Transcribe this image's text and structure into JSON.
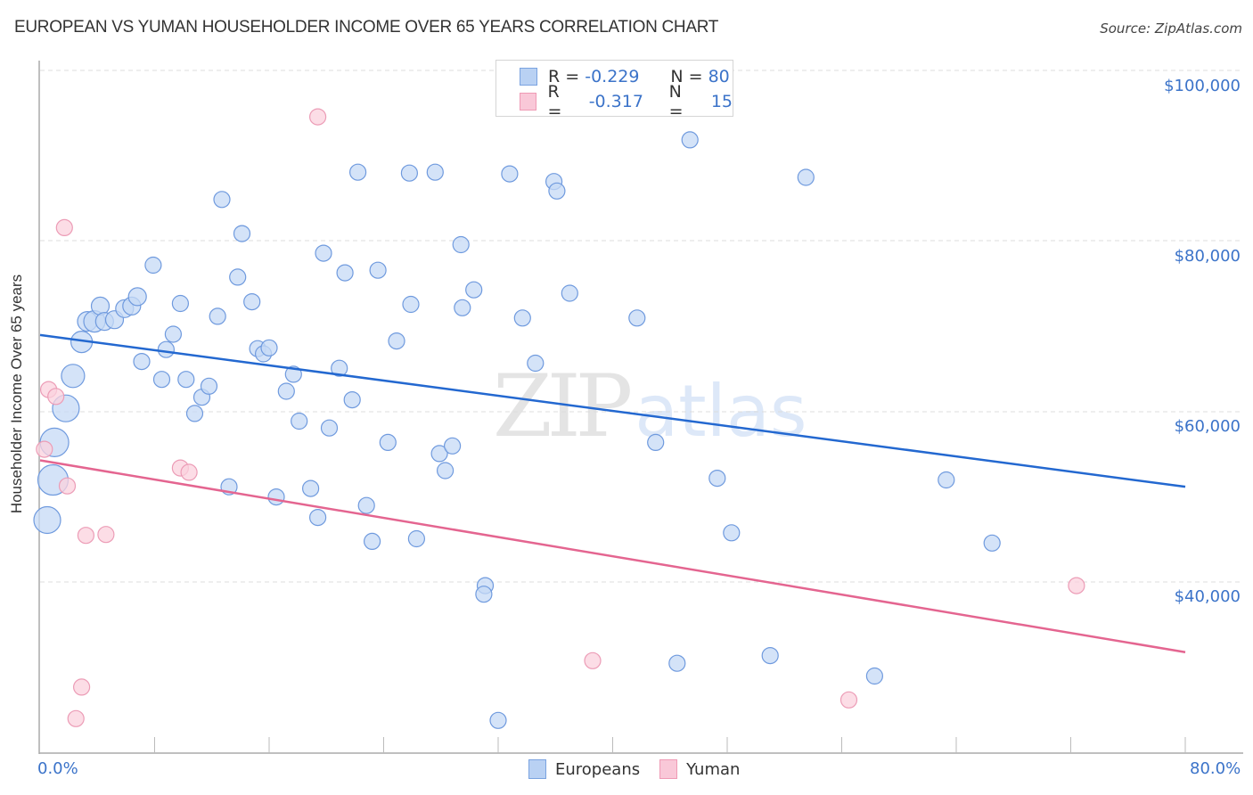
{
  "header": {
    "title": "EUROPEAN VS YUMAN HOUSEHOLDER INCOME OVER 65 YEARS CORRELATION CHART",
    "source": "Source: ZipAtlas.com"
  },
  "legend": {
    "rows": [
      {
        "series": "Europeans",
        "r_label": "R =",
        "r_value": "-0.229",
        "n_label": "N =",
        "n_value": "80",
        "color": "#b9d1f3"
      },
      {
        "series": "Yuman",
        "r_label": "R =",
        "r_value": "-0.317",
        "n_label": "N =",
        "n_value": "15",
        "color": "#f9c8d8"
      }
    ]
  },
  "axes": {
    "ylabel": "Householder Income Over 65 years",
    "yticks": [
      "$100,000",
      "$80,000",
      "$60,000",
      "$40,000"
    ],
    "xticks": [
      "0.0%",
      "80.0%"
    ]
  },
  "bottom_legend": {
    "items": [
      "Europeans",
      "Yuman"
    ]
  },
  "watermark": {
    "zip": "ZIP",
    "atlas": "atlas"
  },
  "colors": {
    "europeans_fill": "#c6daf6",
    "europeans_stroke": "#6f9ade",
    "europeans_line": "#2368d0",
    "yuman_fill": "#fbd1de",
    "yuman_stroke": "#ec9cb6",
    "yuman_line": "#e46590",
    "tick_label": "#3b73c9"
  },
  "chart_data": {
    "type": "scatter",
    "title": "EUROPEAN VS YUMAN HOUSEHOLDER INCOME OVER 65 YEARS CORRELATION CHART",
    "xlabel": "",
    "ylabel": "Householder Income Over 65 years",
    "xlim": [
      0,
      80
    ],
    "ylim": [
      21000,
      102000
    ],
    "x_unit": "%",
    "y_ticks": [
      40000,
      60000,
      80000,
      100000
    ],
    "grid": true,
    "legend_position": "top-center",
    "series": [
      {
        "name": "Europeans",
        "R": -0.229,
        "N": 80,
        "trend": {
          "x": [
            0,
            80
          ],
          "y": [
            69000,
            51200
          ]
        },
        "points": [
          [
            0.5,
            47300,
            15
          ],
          [
            0.9,
            52000,
            17
          ],
          [
            1.0,
            56400,
            16
          ],
          [
            1.8,
            60400,
            15
          ],
          [
            2.3,
            64200,
            13
          ],
          [
            2.9,
            68200,
            12
          ],
          [
            3.3,
            70600,
            11
          ],
          [
            3.8,
            70600,
            12
          ],
          [
            4.2,
            72400,
            10
          ],
          [
            4.5,
            70600,
            10
          ],
          [
            5.2,
            70800,
            10
          ],
          [
            5.9,
            72100,
            10
          ],
          [
            6.4,
            72400,
            10
          ],
          [
            6.8,
            73500,
            10
          ],
          [
            7.1,
            65900,
            9
          ],
          [
            7.9,
            77200,
            9
          ],
          [
            8.5,
            63800,
            9
          ],
          [
            8.8,
            67300,
            9
          ],
          [
            9.3,
            69100,
            9
          ],
          [
            9.8,
            72700,
            9
          ],
          [
            10.2,
            63800,
            9
          ],
          [
            10.8,
            59800,
            9
          ],
          [
            11.3,
            61700,
            9
          ],
          [
            11.8,
            63000,
            9
          ],
          [
            12.4,
            71200,
            9
          ],
          [
            12.7,
            84900,
            9
          ],
          [
            13.2,
            51200,
            9
          ],
          [
            13.8,
            75800,
            9
          ],
          [
            14.1,
            80900,
            9
          ],
          [
            14.8,
            72900,
            9
          ],
          [
            15.2,
            67400,
            9
          ],
          [
            15.6,
            66800,
            9
          ],
          [
            16.0,
            67500,
            9
          ],
          [
            16.5,
            50000,
            9
          ],
          [
            17.2,
            62400,
            9
          ],
          [
            17.7,
            64400,
            9
          ],
          [
            18.1,
            58900,
            9
          ],
          [
            18.9,
            51000,
            9
          ],
          [
            19.4,
            47600,
            9
          ],
          [
            19.8,
            78600,
            9
          ],
          [
            20.2,
            58100,
            9
          ],
          [
            20.9,
            65100,
            9
          ],
          [
            21.3,
            76300,
            9
          ],
          [
            21.8,
            61400,
            9
          ],
          [
            22.2,
            88100,
            9
          ],
          [
            22.8,
            49000,
            9
          ],
          [
            23.2,
            44800,
            9
          ],
          [
            23.6,
            76600,
            9
          ],
          [
            24.3,
            56400,
            9
          ],
          [
            24.9,
            68300,
            9
          ],
          [
            25.9,
            72600,
            9
          ],
          [
            25.8,
            88000,
            9
          ],
          [
            26.3,
            45100,
            9
          ],
          [
            27.6,
            88100,
            9
          ],
          [
            27.9,
            55100,
            9
          ],
          [
            28.3,
            53100,
            9
          ],
          [
            28.8,
            56000,
            9
          ],
          [
            29.4,
            79600,
            9
          ],
          [
            29.5,
            72200,
            9
          ],
          [
            30.3,
            74300,
            9
          ],
          [
            31.1,
            39600,
            9
          ],
          [
            31.0,
            38600,
            9
          ],
          [
            32.0,
            23800,
            9
          ],
          [
            32.8,
            87900,
            9
          ],
          [
            33.7,
            71000,
            9
          ],
          [
            34.6,
            65700,
            9
          ],
          [
            35.9,
            87000,
            9
          ],
          [
            36.1,
            85900,
            9
          ],
          [
            37.0,
            73900,
            9
          ],
          [
            41.7,
            71000,
            9
          ],
          [
            43.0,
            56400,
            9
          ],
          [
            44.5,
            30500,
            9
          ],
          [
            45.4,
            91900,
            9
          ],
          [
            47.3,
            52200,
            9
          ],
          [
            48.3,
            45800,
            9
          ],
          [
            51.0,
            31400,
            9
          ],
          [
            53.5,
            87500,
            9
          ],
          [
            58.3,
            29000,
            9
          ],
          [
            63.3,
            52000,
            9
          ],
          [
            66.5,
            44600,
            9
          ]
        ]
      },
      {
        "name": "Yuman",
        "R": -0.317,
        "N": 15,
        "trend": {
          "x": [
            0,
            80
          ],
          "y": [
            54300,
            31800
          ]
        },
        "points": [
          [
            0.3,
            55600
          ],
          [
            0.6,
            62600
          ],
          [
            1.1,
            61800
          ],
          [
            1.7,
            81600
          ],
          [
            1.9,
            51300
          ],
          [
            2.9,
            27700
          ],
          [
            2.5,
            24000
          ],
          [
            3.2,
            45500
          ],
          [
            4.6,
            45600
          ],
          [
            9.8,
            53400
          ],
          [
            10.4,
            52900
          ],
          [
            19.4,
            94600
          ],
          [
            38.6,
            30800
          ],
          [
            56.5,
            26200
          ],
          [
            72.4,
            39600
          ]
        ]
      }
    ]
  }
}
